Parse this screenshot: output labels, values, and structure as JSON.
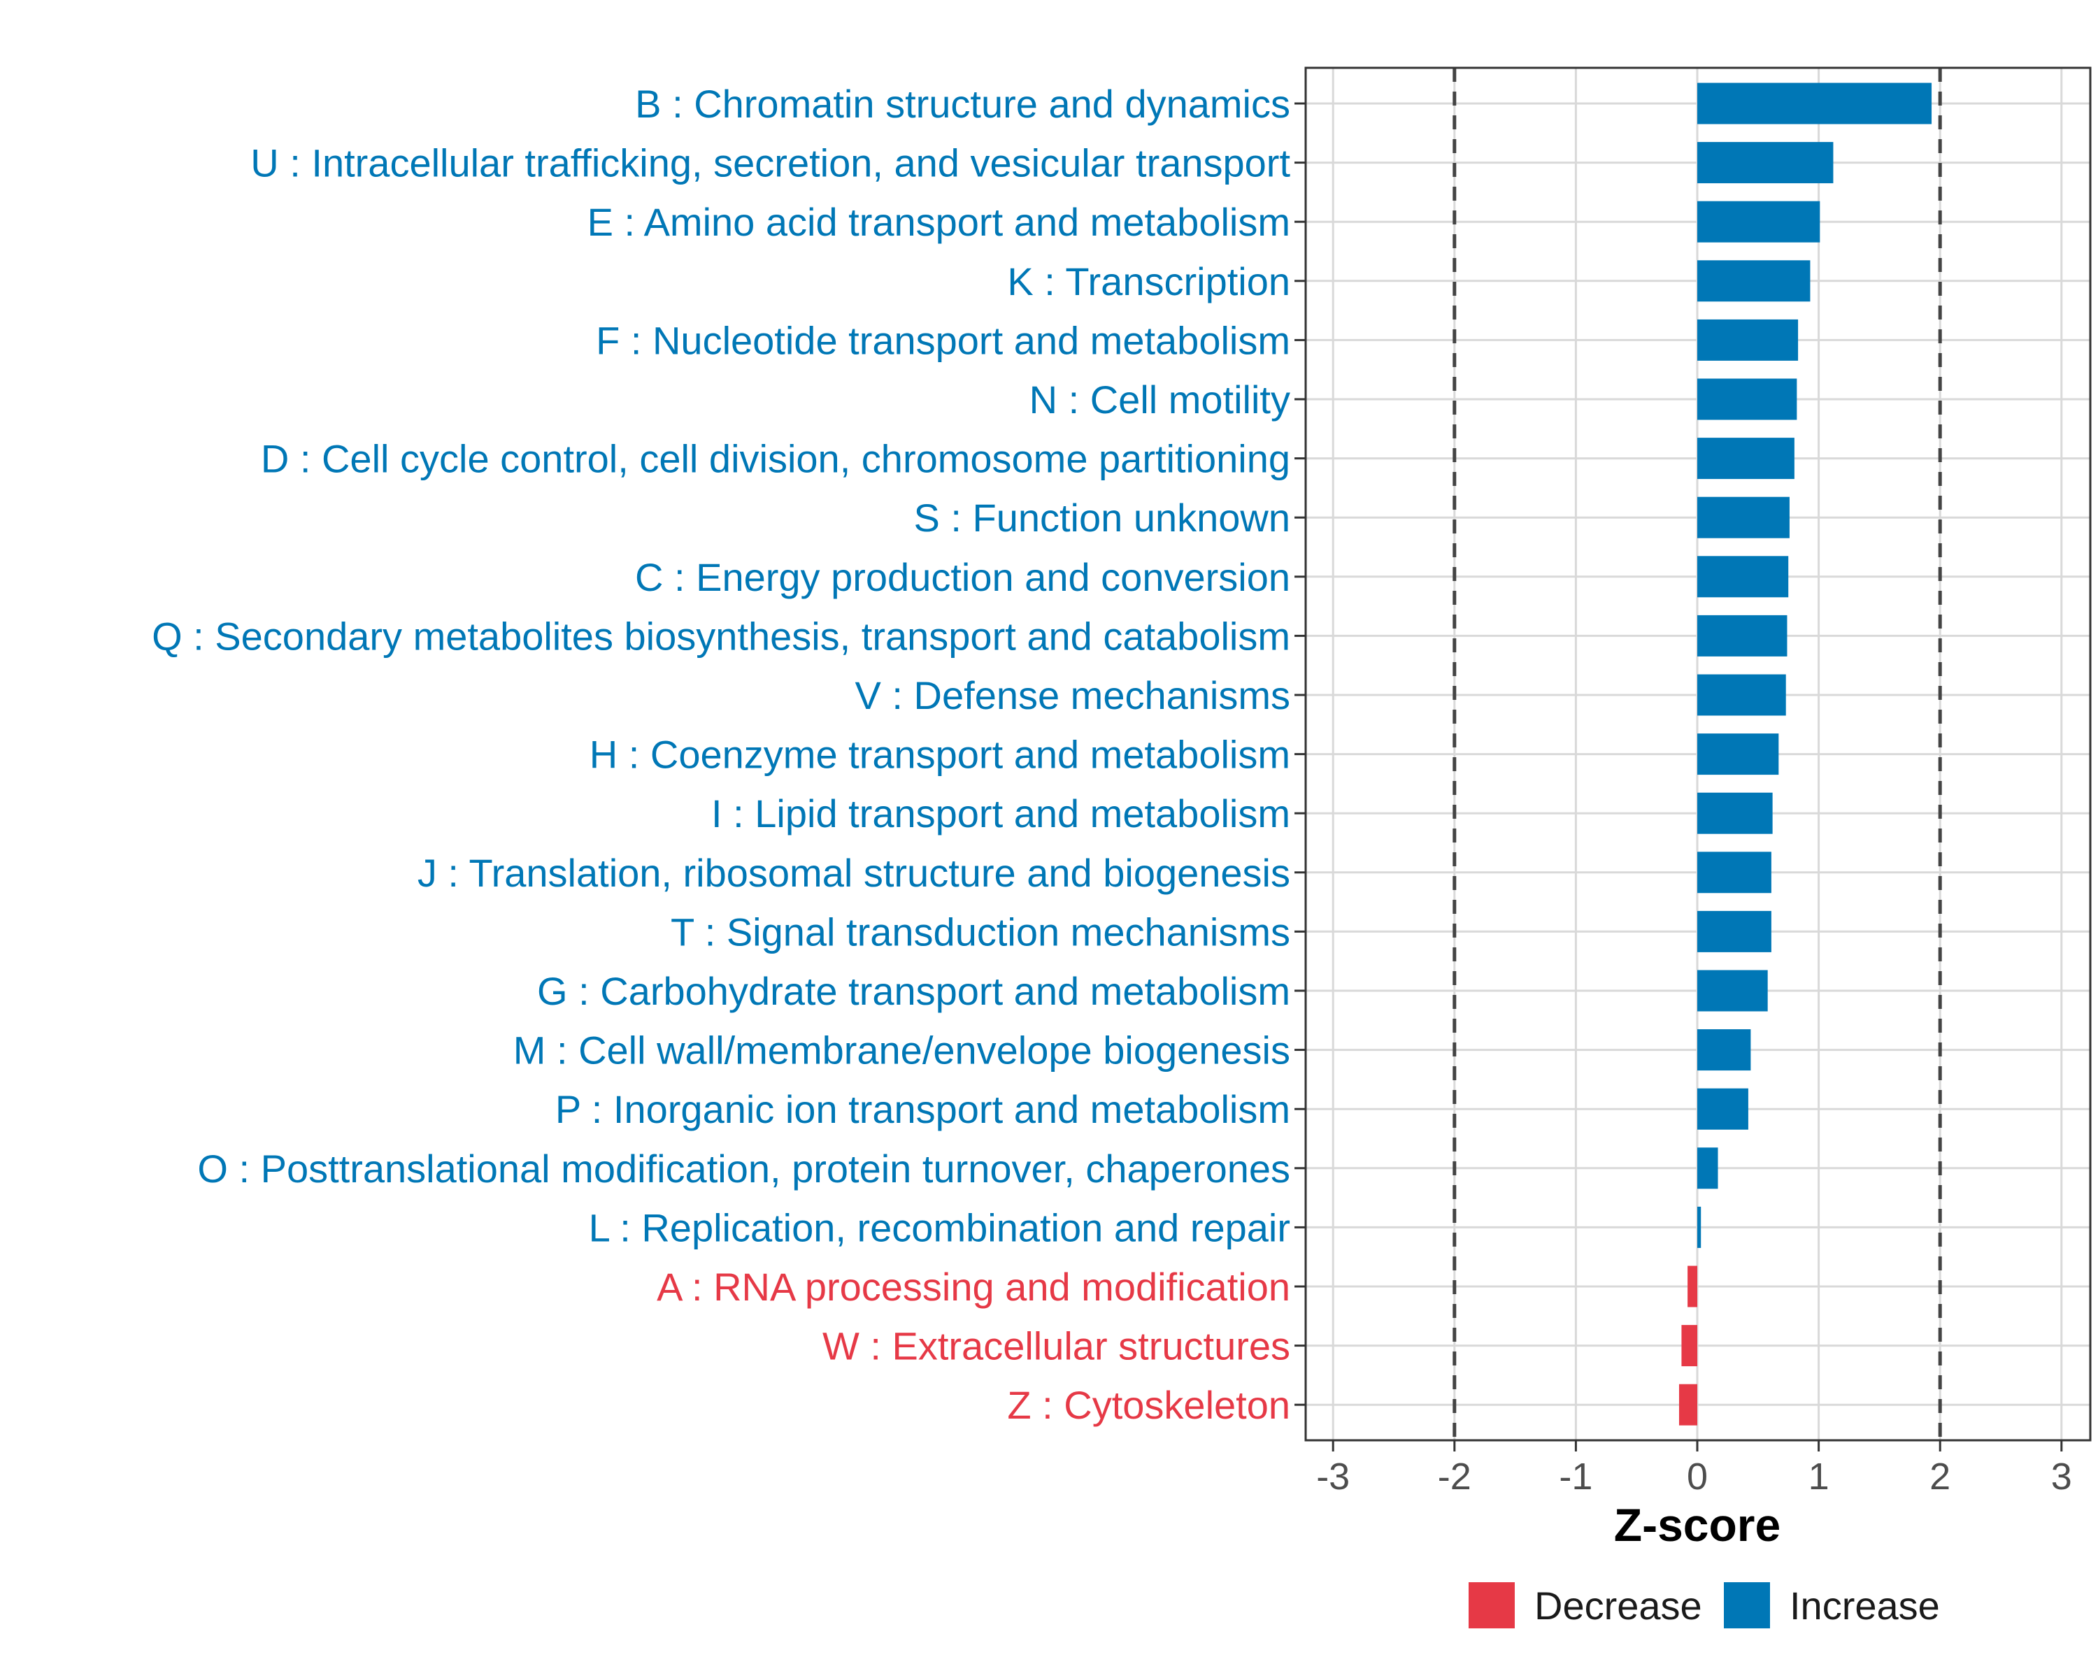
{
  "chart_data": {
    "type": "bar",
    "orientation": "horizontal",
    "xlabel": "Z-score",
    "xlim": [
      -3.2,
      3.2
    ],
    "xticks": [
      -3,
      -2,
      -1,
      0,
      1,
      2,
      3
    ],
    "threshold_lines": [
      -2,
      2
    ],
    "grid": true,
    "legend_position": "bottom",
    "legend": [
      {
        "name": "Decrease",
        "color": "#E63946"
      },
      {
        "name": "Increase",
        "color": "#0077B6"
      }
    ],
    "categories": [
      "B : Chromatin structure and dynamics",
      "U : Intracellular trafficking, secretion, and vesicular transport",
      "E : Amino acid transport and metabolism",
      "K : Transcription",
      "F : Nucleotide transport and metabolism",
      "N : Cell motility",
      "D : Cell cycle control, cell division, chromosome partitioning",
      "S : Function unknown",
      "C : Energy production and conversion",
      "Q : Secondary metabolites biosynthesis, transport and catabolism",
      "V : Defense mechanisms",
      "H : Coenzyme transport and metabolism",
      "I : Lipid transport and metabolism",
      "J : Translation, ribosomal structure and biogenesis",
      "T : Signal transduction mechanisms",
      "G : Carbohydrate transport and metabolism",
      "M : Cell wall/membrane/envelope biogenesis",
      "P : Inorganic ion transport and metabolism",
      "O : Posttranslational modification, protein turnover, chaperones",
      "L : Replication, recombination and repair",
      "A : RNA processing and modification",
      "W : Extracellular structures",
      "Z : Cytoskeleton"
    ],
    "values": [
      1.93,
      1.12,
      1.01,
      0.93,
      0.83,
      0.82,
      0.8,
      0.76,
      0.75,
      0.74,
      0.73,
      0.67,
      0.62,
      0.61,
      0.61,
      0.58,
      0.44,
      0.42,
      0.17,
      0.03,
      -0.08,
      -0.13,
      -0.15
    ]
  }
}
